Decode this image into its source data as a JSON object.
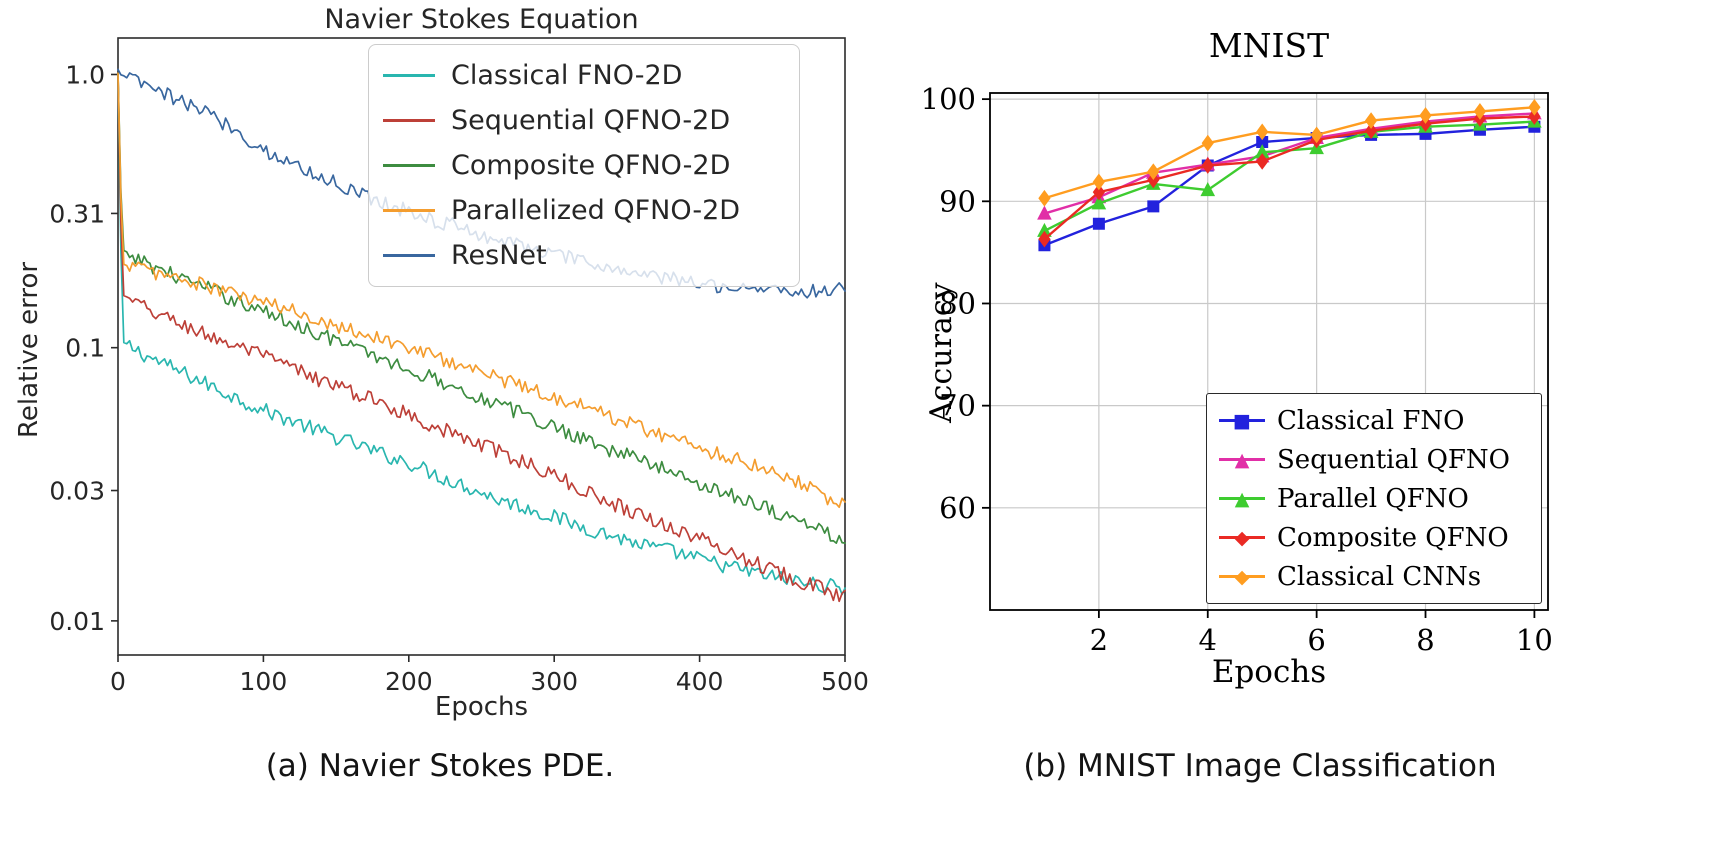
{
  "page": {
    "background": "#ffffff"
  },
  "captions": {
    "a": "(a) Navier Stokes PDE.",
    "b": "(b) MNIST Image Classification"
  },
  "chart_data": [
    {
      "type": "line",
      "title": "Navier Stokes Equation",
      "xlabel": "Epochs",
      "ylabel": "Relative error",
      "caption": "(a) Navier Stokes PDE.",
      "yscale": "log",
      "xlim": [
        0,
        500
      ],
      "ylim": [
        0.0075,
        1.36
      ],
      "xticks": [
        0,
        100,
        200,
        300,
        400,
        500
      ],
      "yticks": [
        1.0,
        0.31,
        0.1,
        0.03,
        0.01
      ],
      "ytick_labels": [
        "1.0",
        "0.31",
        "0.1",
        "0.03",
        "0.01"
      ],
      "grid": false,
      "frame_color": "#2b2b2b",
      "legend_position": "upper right",
      "noise_amplitude": 0.028,
      "x": [
        0,
        3,
        20,
        40,
        60,
        80,
        100,
        120,
        140,
        160,
        180,
        200,
        220,
        240,
        260,
        280,
        300,
        320,
        340,
        360,
        380,
        400,
        420,
        440,
        460,
        480,
        500
      ],
      "series": [
        {
          "name": "Classical FNO-2D",
          "color": "#29b6af",
          "values": [
            1.0,
            0.105,
            0.093,
            0.083,
            0.074,
            0.066,
            0.059,
            0.054,
            0.049,
            0.045,
            0.041,
            0.038,
            0.034,
            0.031,
            0.028,
            0.026,
            0.024,
            0.022,
            0.0205,
            0.019,
            0.018,
            0.0168,
            0.0158,
            0.0149,
            0.0142,
            0.0136,
            0.0132
          ]
        },
        {
          "name": "Sequential QFNO-2D",
          "color": "#bd4038",
          "values": [
            1.0,
            0.155,
            0.138,
            0.124,
            0.112,
            0.102,
            0.093,
            0.084,
            0.076,
            0.069,
            0.063,
            0.057,
            0.051,
            0.046,
            0.042,
            0.038,
            0.034,
            0.03,
            0.027,
            0.0245,
            0.022,
            0.02,
            0.018,
            0.0162,
            0.0147,
            0.0133,
            0.0122
          ]
        },
        {
          "name": "Composite QFNO-2D",
          "color": "#3d8c40",
          "values": [
            1.0,
            0.225,
            0.203,
            0.183,
            0.166,
            0.15,
            0.136,
            0.123,
            0.112,
            0.101,
            0.092,
            0.083,
            0.076,
            0.069,
            0.062,
            0.057,
            0.051,
            0.047,
            0.042,
            0.039,
            0.035,
            0.032,
            0.029,
            0.027,
            0.024,
            0.022,
            0.0195
          ]
        },
        {
          "name": "Parallelized QFNO-2D",
          "color": "#f49d2f",
          "values": [
            1.0,
            0.205,
            0.192,
            0.18,
            0.168,
            0.157,
            0.146,
            0.136,
            0.126,
            0.117,
            0.108,
            0.1,
            0.092,
            0.085,
            0.078,
            0.072,
            0.066,
            0.061,
            0.056,
            0.051,
            0.047,
            0.043,
            0.04,
            0.037,
            0.034,
            0.03,
            0.026
          ]
        },
        {
          "name": "ResNet",
          "color": "#39679f",
          "values": [
            1.03,
            1.0,
            0.9,
            0.81,
            0.73,
            0.63,
            0.53,
            0.47,
            0.42,
            0.38,
            0.345,
            0.315,
            0.29,
            0.27,
            0.25,
            0.235,
            0.22,
            0.205,
            0.195,
            0.185,
            0.178,
            0.172,
            0.168,
            0.165,
            0.162,
            0.16,
            0.165
          ]
        }
      ]
    },
    {
      "type": "line",
      "title": "MNIST",
      "xlabel": "Epochs",
      "ylabel": "Accuracy",
      "caption": "(b) MNIST Image Classification",
      "yscale": "linear",
      "xlim": [
        0,
        10.25
      ],
      "ylim": [
        50,
        100.6
      ],
      "xticks": [
        2,
        4,
        6,
        8,
        10
      ],
      "yticks": [
        60,
        70,
        80,
        90,
        100
      ],
      "grid": true,
      "grid_color": "#c9c9c9",
      "frame_color": "#000000",
      "legend_position": "lower right",
      "x": [
        1,
        2,
        3,
        4,
        5,
        6,
        7,
        8,
        9,
        10
      ],
      "series": [
        {
          "name": "Classical FNO",
          "color": "#2222dd",
          "marker": "square",
          "values": [
            85.7,
            87.8,
            89.5,
            93.5,
            95.8,
            96.2,
            96.5,
            96.6,
            97.0,
            97.3
          ]
        },
        {
          "name": "Sequential QFNO",
          "color": "#e12fa7",
          "marker": "triangle",
          "values": [
            88.8,
            90.4,
            92.8,
            93.6,
            94.4,
            96.2,
            97.1,
            97.8,
            98.3,
            98.6
          ]
        },
        {
          "name": "Parallel QFNO",
          "color": "#3ecc30",
          "marker": "triangle",
          "values": [
            87.1,
            89.8,
            91.7,
            91.1,
            94.8,
            95.2,
            96.8,
            97.3,
            97.5,
            97.8
          ]
        },
        {
          "name": "Composite QFNO",
          "color": "#ea2a24",
          "marker": "diamond",
          "values": [
            86.3,
            90.9,
            92.1,
            93.5,
            93.9,
            96.0,
            96.9,
            97.6,
            98.1,
            98.3
          ]
        },
        {
          "name": "Classical CNNs",
          "color": "#ff9d20",
          "marker": "diamond",
          "values": [
            90.3,
            91.9,
            92.9,
            95.7,
            96.8,
            96.5,
            97.9,
            98.4,
            98.8,
            99.2
          ]
        }
      ]
    }
  ]
}
